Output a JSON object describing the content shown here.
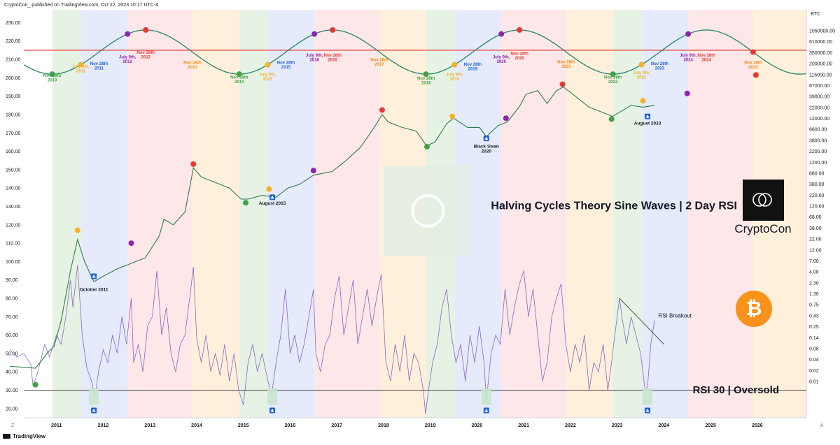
{
  "header": {
    "text": "CryptoCon_ published on TradingView.com, Oct 22, 2023 10:17 UTC-4"
  },
  "footer": {
    "brand": "TradingView",
    "left_glyph": "Z",
    "right_glyph": "A"
  },
  "chart_data": {
    "type": "line",
    "title": "Halving Cycles Theory Sine Waves | 2 Day RSI",
    "brand_name": "CryptoCon",
    "currency_label": "BTC",
    "oversold_label": "RSI 30 | Oversold",
    "rsi_breakout_label": "RSI Breakout",
    "colors": {
      "wave": "#2e8b6e",
      "price": "#2f7d4b",
      "rsi": "#7e57c2",
      "resistance": "#e53935",
      "oversold_line": "#555555",
      "green_dot": "#43a047",
      "yellow_dot": "#f5b22d",
      "purple_dot": "#8e24aa",
      "red_dot": "#e53935",
      "bitcoin": "#f7931a"
    },
    "x_axis": {
      "min": 2010.3,
      "max": 2027.05,
      "ticks": [
        "2011",
        "2012",
        "2013",
        "2014",
        "2015",
        "2016",
        "2017",
        "2018",
        "2019",
        "2020",
        "2021",
        "2022",
        "2023",
        "2024",
        "2025",
        "2026"
      ]
    },
    "left_axis": {
      "min": 15,
      "max": 237,
      "labels": [
        "230.00",
        "220.00",
        "210.00",
        "200.00",
        "190.00",
        "180.00",
        "170.00",
        "160.00",
        "150.00",
        "140.00",
        "130.00",
        "120.00",
        "110.00",
        "100.00",
        "90.00",
        "80.00",
        "70.00",
        "60.00",
        "50.00",
        "40.00",
        "30.00",
        "20.00"
      ]
    },
    "right_axis": {
      "labels": [
        "1050000.00",
        "610000.00",
        "350000.00",
        "200000.00",
        "115000.00",
        "67000.00",
        "39000.00",
        "22000.00",
        "12000.00",
        "6800.00",
        "3800.00",
        "2200.00",
        "1200.00",
        "680.00",
        "380.00",
        "220.00",
        "120.00",
        "68.00",
        "38.00",
        "22.00",
        "12.00",
        "7.00",
        "4.00",
        "2.30",
        "1.30",
        "0.75",
        "0.43",
        "0.25",
        "0.14",
        "0.08",
        "0.04",
        "0.02",
        "0.01"
      ]
    },
    "resistance_level": 215,
    "oversold_level": 30,
    "sine_wave": {
      "period_years": 4,
      "trough_start": 2010.91,
      "min": 202,
      "max": 226
    },
    "cycle_bands": [
      {
        "phase": "green",
        "from": 2010.91,
        "to": 2011.52
      },
      {
        "phase": "blue",
        "from": 2011.52,
        "to": 2012.52
      },
      {
        "phase": "red",
        "from": 2012.52,
        "to": 2013.91
      },
      {
        "phase": "orange",
        "from": 2013.91,
        "to": 2014.91
      },
      {
        "phase": "green",
        "from": 2014.91,
        "to": 2015.52
      },
      {
        "phase": "blue",
        "from": 2015.52,
        "to": 2016.52
      },
      {
        "phase": "red",
        "from": 2016.52,
        "to": 2017.91
      },
      {
        "phase": "orange",
        "from": 2017.91,
        "to": 2018.91
      },
      {
        "phase": "green",
        "from": 2018.91,
        "to": 2019.52
      },
      {
        "phase": "blue",
        "from": 2019.52,
        "to": 2020.52
      },
      {
        "phase": "red",
        "from": 2020.52,
        "to": 2021.91
      },
      {
        "phase": "orange",
        "from": 2021.91,
        "to": 2022.91
      },
      {
        "phase": "green",
        "from": 2022.91,
        "to": 2023.52
      },
      {
        "phase": "blue",
        "from": 2023.52,
        "to": 2024.52
      },
      {
        "phase": "red",
        "from": 2024.52,
        "to": 2025.91
      },
      {
        "phase": "orange",
        "from": 2025.91,
        "to": 2027.05
      }
    ],
    "wave_labels": [
      {
        "line1": "Nov 28th",
        "line2": "2010",
        "x": 2010.91,
        "y": 200.5,
        "color": "#43a047"
      },
      {
        "line1": "July 9th,",
        "line2": "2011",
        "x": 2011.52,
        "y": 205.5,
        "color": "#f5b22d"
      },
      {
        "line1": "Nov 28th",
        "line2": "2011",
        "x": 2011.91,
        "y": 207,
        "color": "#1e63d6"
      },
      {
        "line1": "July 9th,",
        "line2": "2012",
        "x": 2012.52,
        "y": 210.5,
        "color": "#8e24aa"
      },
      {
        "line1": "Nov 28th",
        "line2": "2012",
        "x": 2012.91,
        "y": 213,
        "color": "#e53935"
      },
      {
        "line1": "Nov 28th",
        "line2": "2013",
        "x": 2013.91,
        "y": 207.5,
        "color": "#ef8b1c"
      },
      {
        "line1": "Nov 28th",
        "line2": "2014",
        "x": 2014.91,
        "y": 199.5,
        "color": "#43a047"
      },
      {
        "line1": "July 9th,",
        "line2": "2015",
        "x": 2015.52,
        "y": 201,
        "color": "#f5b22d"
      },
      {
        "line1": "Nov 28th",
        "line2": "2015",
        "x": 2015.91,
        "y": 207.5,
        "color": "#1e63d6"
      },
      {
        "line1": "July 9th,",
        "line2": "2016",
        "x": 2016.52,
        "y": 211.5,
        "color": "#8e24aa"
      },
      {
        "line1": "Nov 28th",
        "line2": "2016",
        "x": 2016.91,
        "y": 211.5,
        "color": "#e53935"
      },
      {
        "line1": "Nov 28th",
        "line2": "2017",
        "x": 2017.91,
        "y": 209,
        "color": "#ef8b1c"
      },
      {
        "line1": "Nov 28th",
        "line2": "2018",
        "x": 2018.91,
        "y": 199,
        "color": "#43a047"
      },
      {
        "line1": "July 9th,",
        "line2": "2019",
        "x": 2019.52,
        "y": 201,
        "color": "#f5b22d"
      },
      {
        "line1": "Nov 28th",
        "line2": "2019",
        "x": 2019.91,
        "y": 206.5,
        "color": "#1e63d6"
      },
      {
        "line1": "July 9th,",
        "line2": "2020",
        "x": 2020.52,
        "y": 210.5,
        "color": "#8e24aa"
      },
      {
        "line1": "Nov 28th",
        "line2": "2020",
        "x": 2020.91,
        "y": 212.5,
        "color": "#e53935"
      },
      {
        "line1": "Nov 28th",
        "line2": "2021",
        "x": 2021.91,
        "y": 208,
        "color": "#ef8b1c"
      },
      {
        "line1": "Nov 28th",
        "line2": "2022",
        "x": 2022.91,
        "y": 199.5,
        "color": "#43a047"
      },
      {
        "line1": "July 9th,",
        "line2": "2023",
        "x": 2023.52,
        "y": 202,
        "color": "#f5b22d"
      },
      {
        "line1": "Nov 28th",
        "line2": "2023",
        "x": 2023.91,
        "y": 207,
        "color": "#1e63d6"
      },
      {
        "line1": "July 9th,",
        "line2": "2024",
        "x": 2024.52,
        "y": 211.5,
        "color": "#8e24aa"
      },
      {
        "line1": "Nov 28th",
        "line2": "2024",
        "x": 2024.91,
        "y": 211.5,
        "color": "#e53935"
      },
      {
        "line1": "Nov 28th",
        "line2": "2025",
        "x": 2025.91,
        "y": 207.5,
        "color": "#ef8b1c"
      }
    ],
    "wave_dots": [
      {
        "x": 2010.91,
        "color": "green"
      },
      {
        "x": 2012.52,
        "color": "purple"
      },
      {
        "x": 2012.91,
        "color": "red"
      },
      {
        "x": 2014.91,
        "color": "green"
      },
      {
        "x": 2015.52,
        "color": "yellow"
      },
      {
        "x": 2016.52,
        "color": "purple"
      },
      {
        "x": 2016.91,
        "color": "red"
      },
      {
        "x": 2018.91,
        "color": "green"
      },
      {
        "x": 2019.52,
        "color": "yellow"
      },
      {
        "x": 2020.52,
        "color": "purple"
      },
      {
        "x": 2020.91,
        "color": "red"
      },
      {
        "x": 2022.91,
        "color": "green"
      },
      {
        "x": 2023.52,
        "color": "yellow"
      },
      {
        "x": 2024.52,
        "color": "purple"
      },
      {
        "x": 2025.91,
        "color": "red"
      },
      {
        "x": 2011.52,
        "color": "yellow"
      }
    ],
    "price_markers": [
      {
        "x": 2010.55,
        "y": 33,
        "color": "green"
      },
      {
        "x": 2011.45,
        "y": 117,
        "color": "yellow"
      },
      {
        "x": 2012.6,
        "y": 110,
        "color": "purple"
      },
      {
        "x": 2013.93,
        "y": 153,
        "color": "red"
      },
      {
        "x": 2015.05,
        "y": 132,
        "color": "green"
      },
      {
        "x": 2015.55,
        "y": 139.5,
        "color": "yellow"
      },
      {
        "x": 2016.5,
        "y": 149.5,
        "color": "purple"
      },
      {
        "x": 2017.97,
        "y": 182.5,
        "color": "red"
      },
      {
        "x": 2018.93,
        "y": 162.5,
        "color": "green"
      },
      {
        "x": 2019.47,
        "y": 179,
        "color": "yellow"
      },
      {
        "x": 2020.62,
        "y": 178,
        "color": "purple"
      },
      {
        "x": 2021.83,
        "y": 196.5,
        "color": "red"
      },
      {
        "x": 2022.88,
        "y": 177.5,
        "color": "green"
      },
      {
        "x": 2023.55,
        "y": 187.5,
        "color": "yellow"
      },
      {
        "x": 2024.5,
        "y": 191.5,
        "color": "purple"
      },
      {
        "x": 2025.97,
        "y": 201.5,
        "color": "red"
      }
    ],
    "price_points": [
      [
        2010.0,
        43
      ],
      [
        2010.55,
        42
      ],
      [
        2010.8,
        50
      ],
      [
        2010.95,
        54
      ],
      [
        2011.1,
        68
      ],
      [
        2011.3,
        95
      ],
      [
        2011.45,
        112
      ],
      [
        2011.6,
        100
      ],
      [
        2011.8,
        89
      ],
      [
        2012.0,
        92
      ],
      [
        2012.3,
        96
      ],
      [
        2012.6,
        99
      ],
      [
        2012.9,
        102
      ],
      [
        2013.2,
        114
      ],
      [
        2013.3,
        123
      ],
      [
        2013.5,
        120
      ],
      [
        2013.75,
        127
      ],
      [
        2013.93,
        151
      ],
      [
        2014.1,
        146
      ],
      [
        2014.4,
        143
      ],
      [
        2014.7,
        140
      ],
      [
        2014.95,
        134
      ],
      [
        2015.1,
        134
      ],
      [
        2015.4,
        136
      ],
      [
        2015.7,
        135
      ],
      [
        2015.95,
        140
      ],
      [
        2016.2,
        142
      ],
      [
        2016.5,
        147
      ],
      [
        2016.9,
        149
      ],
      [
        2017.2,
        155
      ],
      [
        2017.5,
        162
      ],
      [
        2017.8,
        173
      ],
      [
        2017.97,
        180
      ],
      [
        2018.1,
        176
      ],
      [
        2018.4,
        173
      ],
      [
        2018.7,
        171
      ],
      [
        2018.92,
        163
      ],
      [
        2019.1,
        165
      ],
      [
        2019.35,
        175
      ],
      [
        2019.5,
        178
      ],
      [
        2019.8,
        173
      ],
      [
        2020.05,
        173
      ],
      [
        2020.2,
        168
      ],
      [
        2020.45,
        174
      ],
      [
        2020.65,
        176
      ],
      [
        2020.9,
        184
      ],
      [
        2021.05,
        191
      ],
      [
        2021.3,
        193
      ],
      [
        2021.5,
        186
      ],
      [
        2021.7,
        193
      ],
      [
        2021.85,
        195
      ],
      [
        2022.1,
        190
      ],
      [
        2022.4,
        184
      ],
      [
        2022.7,
        181
      ],
      [
        2022.9,
        179
      ],
      [
        2023.1,
        182
      ],
      [
        2023.3,
        185
      ],
      [
        2023.55,
        184
      ],
      [
        2023.8,
        185
      ]
    ],
    "annotations": [
      {
        "text": "October 2011",
        "x": 2011.8,
        "y": 84,
        "arrow_y": 92
      },
      {
        "text": "August 2015",
        "x": 2015.62,
        "y": 131,
        "arrow_y": 135
      },
      {
        "text": "Black Swan",
        "line2": "2020",
        "x": 2020.2,
        "y": 162,
        "arrow_y": 167
      },
      {
        "text": "August 2023",
        "x": 2023.65,
        "y": 174.5,
        "arrow_y": 179
      }
    ],
    "oversold_markers": [
      2011.8,
      2015.62,
      2020.2,
      2023.65
    ],
    "rsi_points": [
      [
        2010.0,
        52
      ],
      [
        2010.15,
        48
      ],
      [
        2010.3,
        50
      ],
      [
        2010.45,
        44
      ],
      [
        2010.5,
        32
      ],
      [
        2010.6,
        40
      ],
      [
        2010.75,
        55
      ],
      [
        2010.85,
        48
      ],
      [
        2011.0,
        60
      ],
      [
        2011.1,
        55
      ],
      [
        2011.2,
        70
      ],
      [
        2011.3,
        90
      ],
      [
        2011.35,
        75
      ],
      [
        2011.45,
        98
      ],
      [
        2011.55,
        60
      ],
      [
        2011.65,
        42
      ],
      [
        2011.75,
        35
      ],
      [
        2011.82,
        26
      ],
      [
        2011.9,
        40
      ],
      [
        2012.0,
        52
      ],
      [
        2012.1,
        45
      ],
      [
        2012.2,
        60
      ],
      [
        2012.3,
        50
      ],
      [
        2012.4,
        70
      ],
      [
        2012.5,
        55
      ],
      [
        2012.6,
        80
      ],
      [
        2012.65,
        45
      ],
      [
        2012.75,
        55
      ],
      [
        2012.85,
        40
      ],
      [
        2012.95,
        65
      ],
      [
        2013.05,
        70
      ],
      [
        2013.15,
        95
      ],
      [
        2013.25,
        60
      ],
      [
        2013.35,
        75
      ],
      [
        2013.45,
        50
      ],
      [
        2013.55,
        40
      ],
      [
        2013.65,
        55
      ],
      [
        2013.75,
        60
      ],
      [
        2013.85,
        80
      ],
      [
        2013.93,
        97
      ],
      [
        2014.0,
        58
      ],
      [
        2014.1,
        45
      ],
      [
        2014.2,
        60
      ],
      [
        2014.3,
        40
      ],
      [
        2014.4,
        50
      ],
      [
        2014.5,
        38
      ],
      [
        2014.6,
        55
      ],
      [
        2014.7,
        35
      ],
      [
        2014.8,
        50
      ],
      [
        2014.9,
        30
      ],
      [
        2015.0,
        22
      ],
      [
        2015.1,
        45
      ],
      [
        2015.2,
        55
      ],
      [
        2015.3,
        40
      ],
      [
        2015.4,
        50
      ],
      [
        2015.5,
        38
      ],
      [
        2015.6,
        27
      ],
      [
        2015.7,
        45
      ],
      [
        2015.8,
        60
      ],
      [
        2015.9,
        85
      ],
      [
        2016.0,
        50
      ],
      [
        2016.1,
        60
      ],
      [
        2016.2,
        45
      ],
      [
        2016.3,
        55
      ],
      [
        2016.4,
        70
      ],
      [
        2016.5,
        85
      ],
      [
        2016.55,
        50
      ],
      [
        2016.65,
        40
      ],
      [
        2016.75,
        55
      ],
      [
        2016.85,
        60
      ],
      [
        2016.95,
        80
      ],
      [
        2017.05,
        92
      ],
      [
        2017.15,
        60
      ],
      [
        2017.25,
        75
      ],
      [
        2017.35,
        90
      ],
      [
        2017.45,
        55
      ],
      [
        2017.55,
        70
      ],
      [
        2017.65,
        85
      ],
      [
        2017.75,
        65
      ],
      [
        2017.85,
        80
      ],
      [
        2017.95,
        93
      ],
      [
        2018.05,
        45
      ],
      [
        2018.15,
        35
      ],
      [
        2018.25,
        55
      ],
      [
        2018.35,
        40
      ],
      [
        2018.45,
        60
      ],
      [
        2018.55,
        35
      ],
      [
        2018.65,
        50
      ],
      [
        2018.75,
        45
      ],
      [
        2018.85,
        30
      ],
      [
        2018.9,
        17
      ],
      [
        2018.95,
        28
      ],
      [
        2019.05,
        45
      ],
      [
        2019.15,
        55
      ],
      [
        2019.25,
        75
      ],
      [
        2019.35,
        85
      ],
      [
        2019.45,
        60
      ],
      [
        2019.55,
        45
      ],
      [
        2019.65,
        55
      ],
      [
        2019.75,
        35
      ],
      [
        2019.85,
        60
      ],
      [
        2019.95,
        45
      ],
      [
        2020.05,
        65
      ],
      [
        2020.15,
        45
      ],
      [
        2020.2,
        24
      ],
      [
        2020.3,
        50
      ],
      [
        2020.4,
        60
      ],
      [
        2020.5,
        55
      ],
      [
        2020.6,
        85
      ],
      [
        2020.7,
        60
      ],
      [
        2020.8,
        75
      ],
      [
        2020.9,
        87
      ],
      [
        2021.0,
        95
      ],
      [
        2021.1,
        70
      ],
      [
        2021.2,
        85
      ],
      [
        2021.3,
        60
      ],
      [
        2021.4,
        35
      ],
      [
        2021.5,
        45
      ],
      [
        2021.6,
        70
      ],
      [
        2021.7,
        80
      ],
      [
        2021.8,
        88
      ],
      [
        2021.9,
        55
      ],
      [
        2022.0,
        40
      ],
      [
        2022.1,
        55
      ],
      [
        2022.2,
        45
      ],
      [
        2022.3,
        60
      ],
      [
        2022.4,
        30
      ],
      [
        2022.5,
        45
      ],
      [
        2022.6,
        40
      ],
      [
        2022.7,
        55
      ],
      [
        2022.8,
        30
      ],
      [
        2022.88,
        45
      ],
      [
        2022.95,
        60
      ],
      [
        2023.05,
        80
      ],
      [
        2023.1,
        70
      ],
      [
        2023.2,
        55
      ],
      [
        2023.3,
        70
      ],
      [
        2023.4,
        60
      ],
      [
        2023.5,
        50
      ],
      [
        2023.6,
        30
      ],
      [
        2023.65,
        32
      ],
      [
        2023.72,
        55
      ],
      [
        2023.8,
        68
      ]
    ],
    "rsi_breakout_line": {
      "x1": 2023.05,
      "y1": 80,
      "x2": 2024.0,
      "y2": 55
    }
  }
}
